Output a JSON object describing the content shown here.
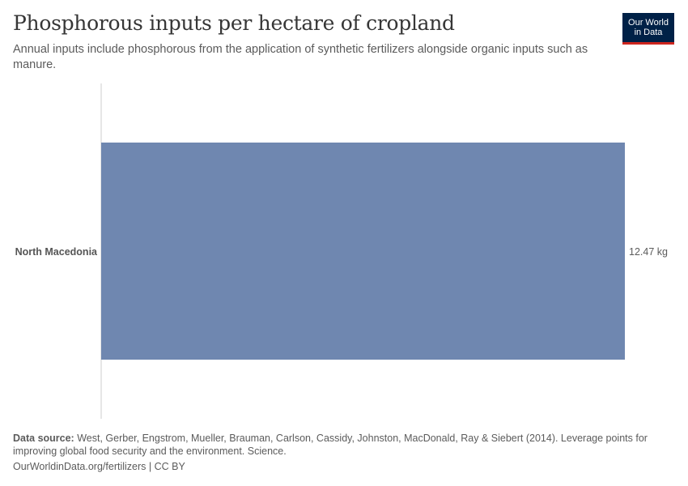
{
  "header": {
    "title": "Phosphorous inputs per hectare of cropland",
    "subtitle": "Annual inputs include phosphorous from the application of synthetic fertilizers alongside organic inputs such as manure."
  },
  "logo": {
    "line1": "Our World",
    "line2": "in Data"
  },
  "chart_data": {
    "type": "bar",
    "orientation": "horizontal",
    "categories": [
      "North Macedonia"
    ],
    "values": [
      12.47
    ],
    "value_labels": [
      "12.47 kg"
    ],
    "unit": "kg",
    "xlim": [
      0,
      12.47
    ],
    "bar_color": "#6f87b0",
    "grid": false
  },
  "footer": {
    "source_label": "Data source:",
    "source_text": "West, Gerber, Engstrom, Mueller, Brauman, Carlson, Cassidy, Johnston, MacDonald, Ray & Siebert (2014). Leverage points for improving global food security and the environment. Science.",
    "url_text": "OurWorldinData.org/fertilizers | CC BY"
  }
}
